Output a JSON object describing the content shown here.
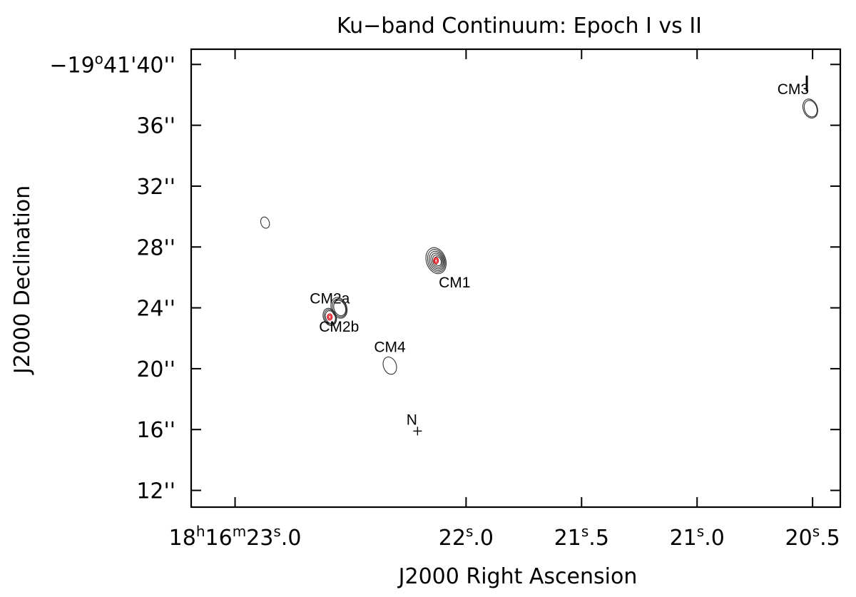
{
  "chart_data": {
    "type": "scatter",
    "title": "Ku−band Continuum: Epoch I vs II",
    "xlabel": "J2000 Right Ascension",
    "ylabel": "J2000 Declination",
    "xlim": [
      23.19,
      20.38
    ],
    "ylim": [
      41.0,
      10.9
    ],
    "x_ticks": [
      {
        "value": 23.0,
        "parts": [
          "18",
          "h",
          "16",
          "m",
          "23",
          "s",
          ".0"
        ]
      },
      {
        "value": 22.0,
        "parts": [
          "22",
          "s",
          ".0"
        ]
      },
      {
        "value": 21.5,
        "parts": [
          "21",
          "s",
          ".5"
        ]
      },
      {
        "value": 21.0,
        "parts": [
          "21",
          "s",
          ".0"
        ]
      },
      {
        "value": 20.5,
        "parts": [
          "20",
          "s",
          ".5"
        ]
      }
    ],
    "y_ticks": [
      {
        "value": 12,
        "label": "12''"
      },
      {
        "value": 16,
        "label": "16''"
      },
      {
        "value": 20,
        "label": "20''"
      },
      {
        "value": 24,
        "label": "24''"
      },
      {
        "value": 28,
        "label": "28''"
      },
      {
        "value": 32,
        "label": "32''"
      },
      {
        "value": 36,
        "label": "36''"
      },
      {
        "value": 40,
        "label": "−19°41'40''",
        "parts": [
          "−19",
          "o",
          "41'40''"
        ]
      }
    ],
    "sources": [
      {
        "label": "CM1",
        "x": 22.13,
        "y": 27.1,
        "label_pos": "below-right",
        "contours": 6,
        "size": 1.0,
        "red_core": true
      },
      {
        "label": "CM2a",
        "x": 22.59,
        "y": 23.4,
        "label_pos": "above",
        "contours": 3,
        "size": 0.5,
        "red_core": true
      },
      {
        "label": "CM2b",
        "x": 22.55,
        "y": 24.0,
        "label_pos": "below",
        "contours": 3,
        "size": 0.7,
        "red_core": false
      },
      {
        "label": "CM4",
        "x": 22.33,
        "y": 20.2,
        "label_pos": "above",
        "contours": 1,
        "size": 0.5,
        "red_core": false
      },
      {
        "label": "CM3",
        "x": 20.51,
        "y": 37.1,
        "label_pos": "above-left",
        "contours": 2,
        "size": 0.6,
        "red_core": false
      },
      {
        "label": "",
        "x": 22.87,
        "y": 29.6,
        "label_pos": "none",
        "contours": 1,
        "size": 0.15,
        "red_core": false
      }
    ],
    "markers": [
      {
        "label": "N",
        "x": 22.21,
        "y": 15.9,
        "symbol": "+"
      }
    ],
    "corner_label": "I",
    "grid": false
  }
}
